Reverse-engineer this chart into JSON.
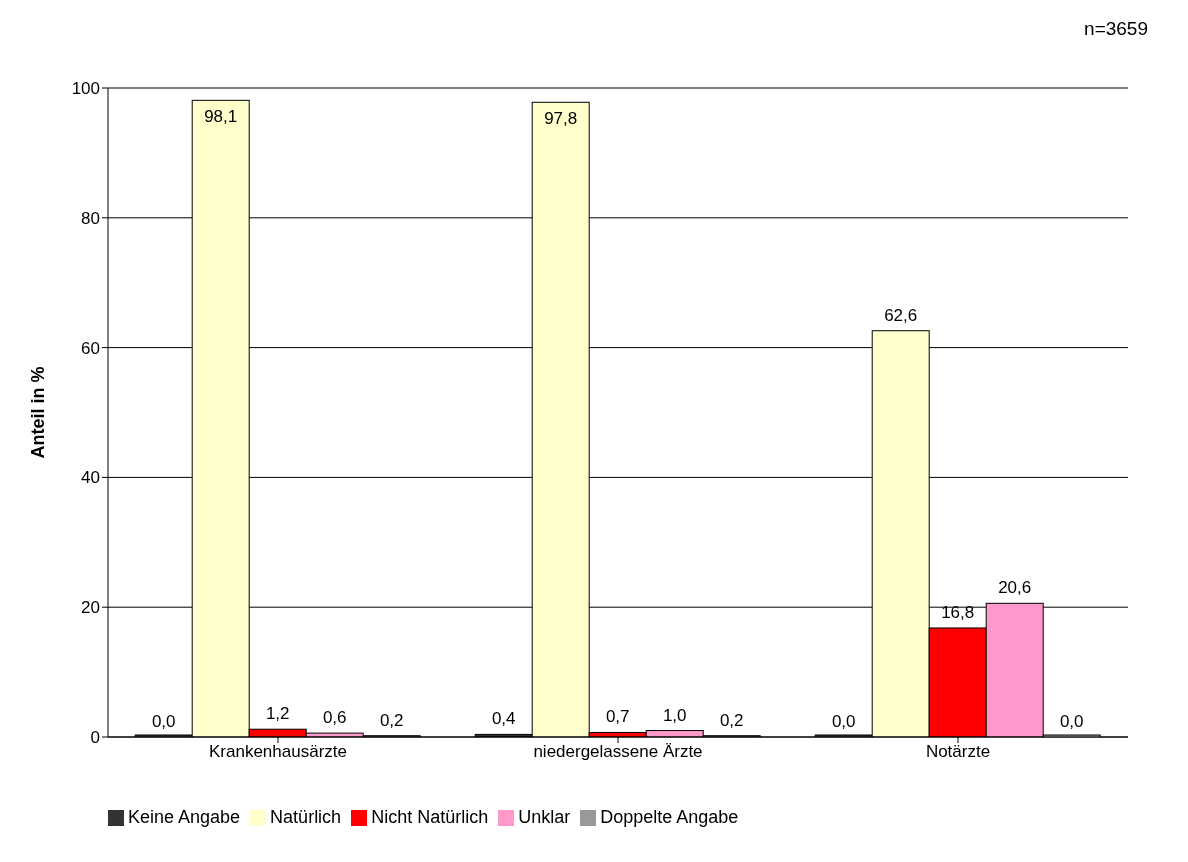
{
  "chart_data": {
    "type": "bar",
    "ylabel": "Anteil in %",
    "annotations": [
      "n=3659"
    ],
    "categories": [
      "Krankenhausärzte",
      "niedergelassene Ärzte",
      "Notärzte"
    ],
    "series": [
      {
        "name": "Keine Angabe",
        "color": "#333333",
        "values": [
          0.0,
          0.4,
          0.0
        ],
        "value_labels": [
          "0,0",
          "0,4",
          "0,0"
        ]
      },
      {
        "name": "Natürlich",
        "color": "#ffffcc",
        "values": [
          98.1,
          97.8,
          62.6
        ],
        "value_labels": [
          "98,1",
          "97,8",
          "62,6"
        ]
      },
      {
        "name": "Nicht Natürlich",
        "color": "#ff0000",
        "values": [
          1.2,
          0.7,
          16.8
        ],
        "value_labels": [
          "1,2",
          "0,7",
          "16,8"
        ]
      },
      {
        "name": "Unklar",
        "color": "#ff99cc",
        "values": [
          0.6,
          1.0,
          20.6
        ],
        "value_labels": [
          "0,6",
          "1,0",
          "20,6"
        ]
      },
      {
        "name": "Doppelte Angabe",
        "color": "#999999",
        "values": [
          0.2,
          0.2,
          0.0
        ],
        "value_labels": [
          "0,2",
          "0,2",
          "0,0"
        ]
      }
    ],
    "ylim": [
      0,
      100
    ],
    "yticks": [
      0,
      20,
      40,
      60,
      80,
      100
    ],
    "grid": "y",
    "legend": "bottom left"
  }
}
